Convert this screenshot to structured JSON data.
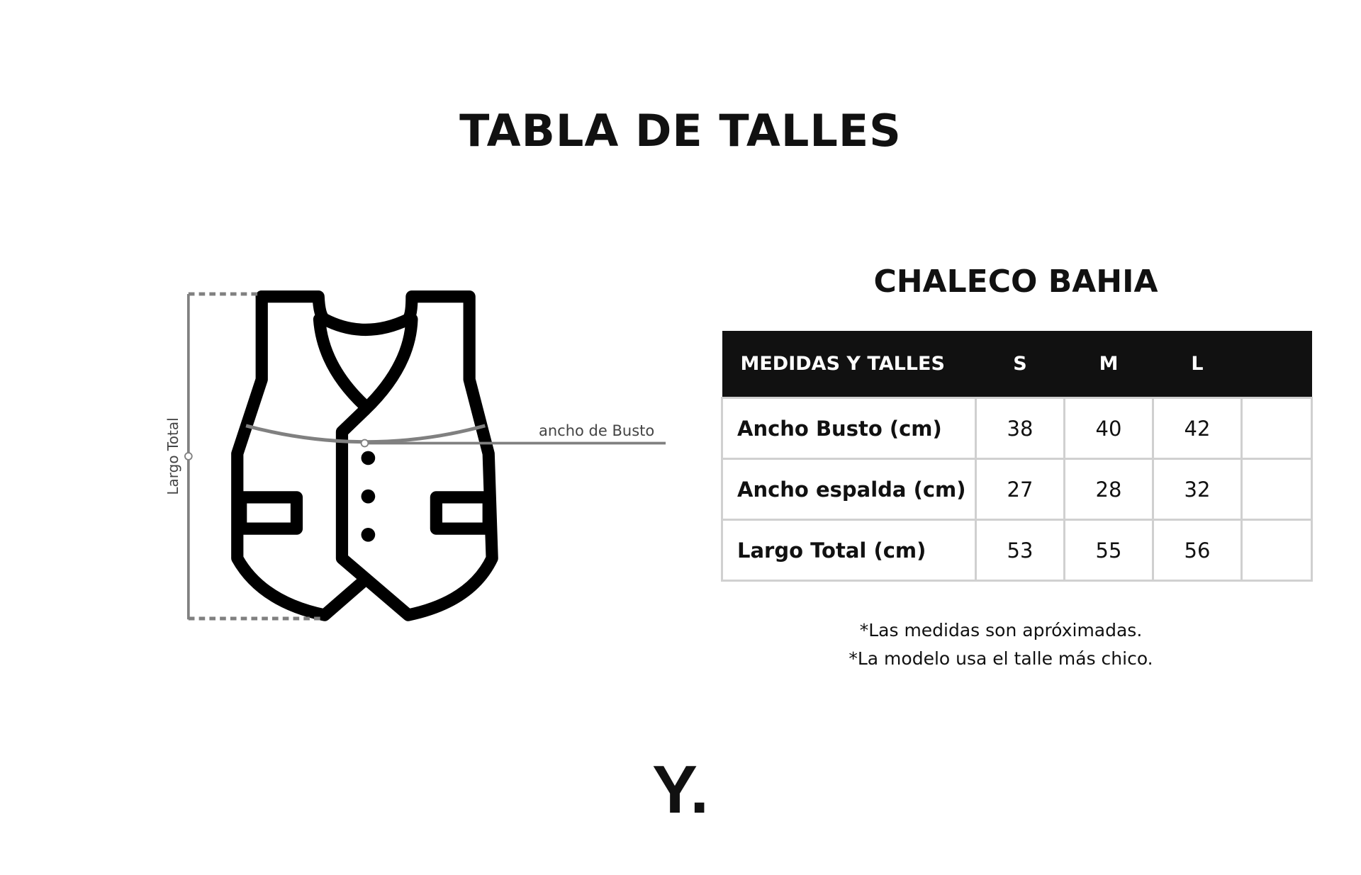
{
  "title": "TABLA DE TALLES",
  "product": "CHALECO BAHIA",
  "diagram": {
    "bust_label": "ancho de Busto",
    "length_label": "Largo Total"
  },
  "table": {
    "headers": [
      "MEDIDAS Y TALLES",
      "S",
      "M",
      "L",
      ""
    ],
    "rows": [
      {
        "label": "Ancho Busto (cm)",
        "values": [
          "38",
          "40",
          "42",
          ""
        ]
      },
      {
        "label": "Ancho espalda (cm)",
        "values": [
          "27",
          "28",
          "32",
          ""
        ]
      },
      {
        "label": "Largo Total (cm)",
        "values": [
          "53",
          "55",
          "56",
          ""
        ]
      }
    ]
  },
  "notes": [
    "*Las medidas son apróximadas.",
    "*La modelo usa el talle más chico."
  ],
  "logo": "Y.",
  "colors": {
    "header_bg": "#111111",
    "border": "#d0d0d0",
    "guide": "#808080"
  }
}
